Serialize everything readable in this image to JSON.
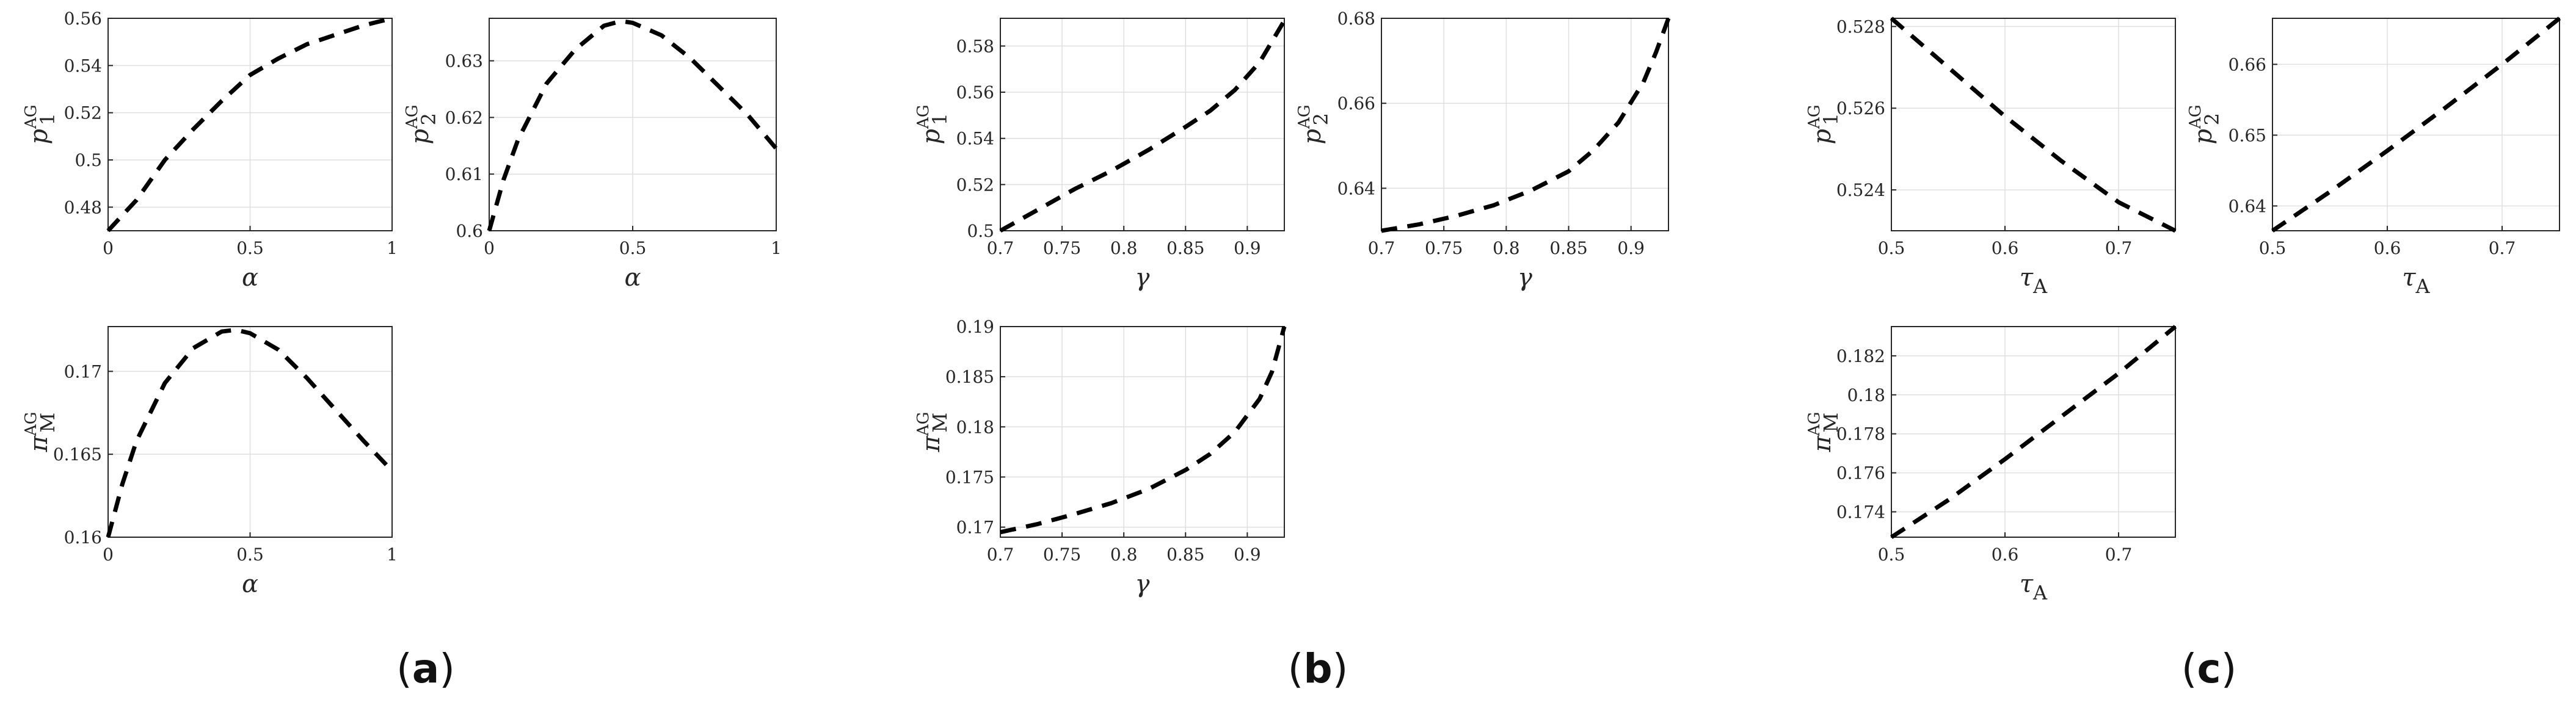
{
  "chart_data": [
    {
      "type": "line",
      "panel": "a",
      "position": "top-left",
      "xlabel": {
        "base": "α",
        "sub": "",
        "sup": ""
      },
      "ylabel": {
        "base": "p",
        "sub": "1",
        "sup": "AG"
      },
      "xlim": [
        0,
        1
      ],
      "ylim": [
        0.47,
        0.56
      ],
      "xticks": [
        "0",
        "0.5",
        "1"
      ],
      "yticks": [
        "0.48",
        "0.5",
        "0.52",
        "0.54",
        "0.56"
      ],
      "grid": true,
      "x": [
        0,
        0.1,
        0.2,
        0.3,
        0.4,
        0.5,
        0.6,
        0.7,
        0.8,
        0.9,
        1.0
      ],
      "y": [
        0.47,
        0.483,
        0.5,
        0.513,
        0.525,
        0.536,
        0.543,
        0.549,
        0.553,
        0.557,
        0.56
      ]
    },
    {
      "type": "line",
      "panel": "a",
      "position": "top-right",
      "xlabel": {
        "base": "α",
        "sub": "",
        "sup": ""
      },
      "ylabel": {
        "base": "p",
        "sub": "2",
        "sup": "AG"
      },
      "xlim": [
        0,
        1
      ],
      "ylim": [
        0.6,
        0.6375
      ],
      "xticks": [
        "0",
        "0.5",
        "1"
      ],
      "yticks": [
        "0.6",
        "0.61",
        "0.62",
        "0.63"
      ],
      "grid": true,
      "x": [
        0,
        0.05,
        0.1,
        0.2,
        0.3,
        0.4,
        0.46,
        0.5,
        0.6,
        0.7,
        0.8,
        0.9,
        1.0
      ],
      "y": [
        0.6,
        0.609,
        0.616,
        0.626,
        0.632,
        0.6362,
        0.637,
        0.6367,
        0.6345,
        0.6305,
        0.6255,
        0.6205,
        0.6145
      ]
    },
    {
      "type": "line",
      "panel": "a",
      "position": "bottom-left",
      "xlabel": {
        "base": "α",
        "sub": "",
        "sup": ""
      },
      "ylabel": {
        "base": "π",
        "sub": "M",
        "sup": "AG"
      },
      "xlim": [
        0,
        1
      ],
      "ylim": [
        0.16,
        0.1727
      ],
      "xticks": [
        "0",
        "0.5",
        "1"
      ],
      "yticks": [
        "0.16",
        "0.165",
        "0.17"
      ],
      "grid": true,
      "x": [
        0,
        0.05,
        0.1,
        0.2,
        0.3,
        0.4,
        0.45,
        0.5,
        0.6,
        0.7,
        0.8,
        0.9,
        1.0
      ],
      "y": [
        0.16,
        0.1632,
        0.1658,
        0.1693,
        0.1714,
        0.1724,
        0.1725,
        0.1723,
        0.1713,
        0.1696,
        0.1677,
        0.1658,
        0.164
      ]
    },
    {
      "type": "line",
      "panel": "b",
      "position": "top-left",
      "xlabel": {
        "base": "γ",
        "sub": "",
        "sup": ""
      },
      "ylabel": {
        "base": "p",
        "sub": "1",
        "sup": "AG"
      },
      "xlim": [
        0.7,
        0.93
      ],
      "ylim": [
        0.5,
        0.592
      ],
      "xticks": [
        "0.7",
        "0.75",
        "0.8",
        "0.85",
        "0.9"
      ],
      "yticks": [
        "0.5",
        "0.52",
        "0.54",
        "0.56",
        "0.58"
      ],
      "grid": true,
      "x": [
        0.7,
        0.73,
        0.76,
        0.79,
        0.82,
        0.85,
        0.87,
        0.89,
        0.91,
        0.93
      ],
      "y": [
        0.5,
        0.509,
        0.518,
        0.526,
        0.535,
        0.545,
        0.552,
        0.561,
        0.573,
        0.591
      ]
    },
    {
      "type": "line",
      "panel": "b",
      "position": "top-right",
      "xlabel": {
        "base": "γ",
        "sub": "",
        "sup": ""
      },
      "ylabel": {
        "base": "p",
        "sub": "2",
        "sup": "AG"
      },
      "xlim": [
        0.7,
        0.93
      ],
      "ylim": [
        0.63,
        0.68
      ],
      "xticks": [
        "0.7",
        "0.75",
        "0.8",
        "0.85",
        "0.9"
      ],
      "yticks": [
        "0.64",
        "0.66",
        "0.68"
      ],
      "grid": true,
      "x": [
        0.7,
        0.73,
        0.76,
        0.79,
        0.82,
        0.85,
        0.87,
        0.89,
        0.91,
        0.92,
        0.93
      ],
      "y": [
        0.63,
        0.6315,
        0.6335,
        0.636,
        0.6395,
        0.644,
        0.649,
        0.6555,
        0.665,
        0.672,
        0.68
      ]
    },
    {
      "type": "line",
      "panel": "b",
      "position": "bottom-left",
      "xlabel": {
        "base": "γ",
        "sub": "",
        "sup": ""
      },
      "ylabel": {
        "base": "π",
        "sub": "M",
        "sup": "AG"
      },
      "xlim": [
        0.7,
        0.93
      ],
      "ylim": [
        0.169,
        0.19
      ],
      "xticks": [
        "0.7",
        "0.75",
        "0.8",
        "0.85",
        "0.9"
      ],
      "yticks": [
        "0.17",
        "0.175",
        "0.18",
        "0.185",
        "0.19"
      ],
      "grid": true,
      "x": [
        0.7,
        0.73,
        0.76,
        0.79,
        0.82,
        0.85,
        0.87,
        0.89,
        0.91,
        0.92,
        0.93
      ],
      "y": [
        0.1695,
        0.1703,
        0.1713,
        0.1724,
        0.1738,
        0.1757,
        0.1773,
        0.1795,
        0.1828,
        0.1855,
        0.19
      ]
    },
    {
      "type": "line",
      "panel": "c",
      "position": "top-left",
      "xlabel": {
        "base": "τ",
        "sub": "A",
        "sup": ""
      },
      "ylabel": {
        "base": "p",
        "sub": "1",
        "sup": "AG"
      },
      "xlim": [
        0.5,
        0.75
      ],
      "ylim": [
        0.523,
        0.5282
      ],
      "xticks": [
        "0.5",
        "0.6",
        "0.7"
      ],
      "yticks": [
        "0.524",
        "0.526",
        "0.528"
      ],
      "grid": true,
      "x": [
        0.5,
        0.55,
        0.6,
        0.65,
        0.7,
        0.75
      ],
      "y": [
        0.5282,
        0.527,
        0.5258,
        0.5247,
        0.5237,
        0.523
      ]
    },
    {
      "type": "line",
      "panel": "c",
      "position": "top-right",
      "xlabel": {
        "base": "τ",
        "sub": "A",
        "sup": ""
      },
      "ylabel": {
        "base": "p",
        "sub": "2",
        "sup": "AG"
      },
      "xlim": [
        0.5,
        0.75
      ],
      "ylim": [
        0.6365,
        0.6665
      ],
      "xticks": [
        "0.5",
        "0.6",
        "0.7"
      ],
      "yticks": [
        "0.64",
        "0.65",
        "0.66"
      ],
      "grid": true,
      "x": [
        0.5,
        0.55,
        0.6,
        0.65,
        0.7,
        0.75
      ],
      "y": [
        0.6365,
        0.642,
        0.6478,
        0.6538,
        0.66,
        0.6665
      ]
    },
    {
      "type": "line",
      "panel": "c",
      "position": "bottom-left",
      "xlabel": {
        "base": "τ",
        "sub": "A",
        "sup": ""
      },
      "ylabel": {
        "base": "π",
        "sub": "M",
        "sup": "AG"
      },
      "xlim": [
        0.5,
        0.75
      ],
      "ylim": [
        0.1727,
        0.1835
      ],
      "xticks": [
        "0.5",
        "0.6",
        "0.7"
      ],
      "yticks": [
        "0.174",
        "0.176",
        "0.178",
        "0.18",
        "0.182"
      ],
      "grid": true,
      "x": [
        0.5,
        0.55,
        0.6,
        0.65,
        0.7,
        0.75
      ],
      "y": [
        0.1727,
        0.1746,
        0.1767,
        0.1789,
        0.1811,
        0.1835
      ]
    }
  ],
  "panel_labels": [
    "a",
    "b",
    "c"
  ]
}
